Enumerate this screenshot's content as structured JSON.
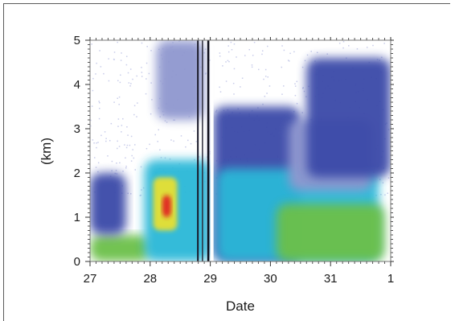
{
  "chart_data": {
    "type": "heatmap",
    "title": "",
    "xlabel": "Date",
    "ylabel": "(km)",
    "x_ticks": [
      "27",
      "28",
      "29",
      "30",
      "31",
      "1"
    ],
    "y_ticks": [
      "0",
      "1",
      "2",
      "3",
      "4",
      "5"
    ],
    "xlim": [
      27,
      32
    ],
    "ylim": [
      0,
      5
    ],
    "legend": "none",
    "grid": false,
    "colors": {
      "background": "#ffffff",
      "faint": "#c9cdea",
      "lavender": "#8f97cf",
      "blue": "#3a4aa8",
      "cyan": "#2bb8d8",
      "green": "#6cc04a",
      "yellow": "#e8e030",
      "orange": "#f09020",
      "red": "#e02020"
    },
    "regions": [
      {
        "level": "green",
        "x": [
          27.0,
          28.0
        ],
        "y": [
          0.0,
          0.6
        ]
      },
      {
        "level": "blue",
        "x": [
          27.0,
          27.6
        ],
        "y": [
          0.6,
          2.0
        ]
      },
      {
        "level": "cyan",
        "x": [
          27.9,
          29.0
        ],
        "y": [
          0.0,
          2.3
        ]
      },
      {
        "level": "yellow",
        "x": [
          28.05,
          28.45
        ],
        "y": [
          0.7,
          1.9
        ]
      },
      {
        "level": "red",
        "x": [
          28.2,
          28.35
        ],
        "y": [
          1.0,
          1.5
        ]
      },
      {
        "level": "blue",
        "x": [
          29.05,
          30.5
        ],
        "y": [
          0.0,
          3.5
        ]
      },
      {
        "level": "cyan",
        "x": [
          29.1,
          31.8
        ],
        "y": [
          0.0,
          2.1
        ]
      },
      {
        "level": "green",
        "x": [
          30.1,
          31.9
        ],
        "y": [
          0.0,
          1.3
        ]
      },
      {
        "level": "lavender",
        "x": [
          30.3,
          31.7
        ],
        "y": [
          1.6,
          3.2
        ]
      },
      {
        "level": "blue",
        "x": [
          30.6,
          32.0
        ],
        "y": [
          1.9,
          4.6
        ]
      },
      {
        "level": "lavender",
        "x": [
          28.1,
          28.9
        ],
        "y": [
          3.2,
          5.0
        ]
      }
    ]
  }
}
